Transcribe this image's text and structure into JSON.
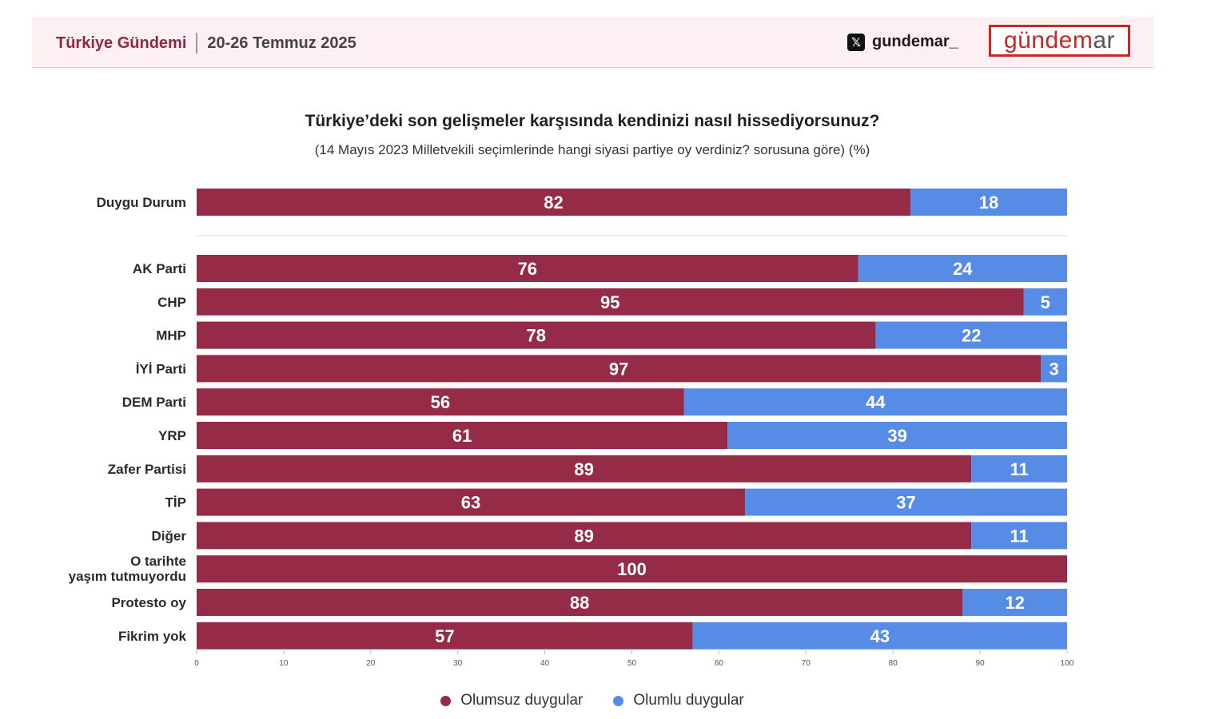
{
  "header": {
    "title": "Türkiye Gündemi",
    "date": "20-26 Temmuz 2025",
    "handle": "gundemar_",
    "logo_main": "gündem",
    "logo_tail": "ar"
  },
  "chart_data": {
    "type": "bar",
    "orientation": "horizontal",
    "stacked": true,
    "title": "Türkiye’deki son gelişmeler karşısında kendinizi nasıl hissediyorsunuz?",
    "subtitle": "(14 Mayıs 2023 Milletvekili seçimlerinde hangi siyasi partiye oy verdiniz? sorusuna göre) (%)",
    "categories": [
      "Duygu Durum",
      "AK Parti",
      "CHP",
      "MHP",
      "İYİ Parti",
      "DEM Parti",
      "YRP",
      "Zafer Partisi",
      "TİP",
      "Diğer",
      "O tarihte yaşım tutmuyordu",
      "Protesto oy",
      "Fikrim yok"
    ],
    "series": [
      {
        "name": "Olumsuz duygular",
        "color": "#962b48",
        "values": [
          82,
          76,
          95,
          78,
          97,
          56,
          61,
          89,
          63,
          89,
          100,
          88,
          57
        ]
      },
      {
        "name": "Olumlu duygular",
        "color": "#568be6",
        "values": [
          18,
          24,
          5,
          22,
          3,
          44,
          39,
          11,
          37,
          11,
          0,
          12,
          43
        ]
      }
    ],
    "xlim": [
      0,
      100
    ],
    "xticks": [
      0,
      10,
      20,
      30,
      40,
      50,
      60,
      70,
      80,
      90,
      100
    ],
    "legend_position": "bottom"
  }
}
